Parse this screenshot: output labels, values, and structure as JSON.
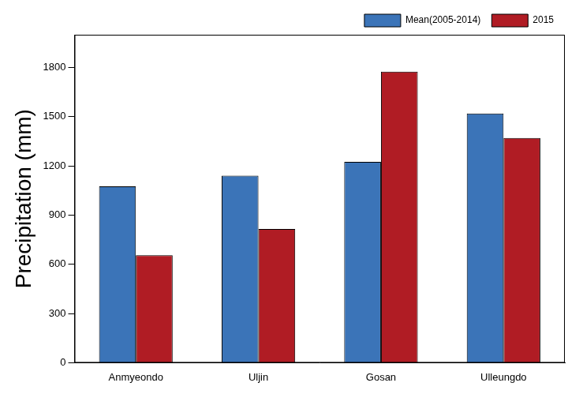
{
  "chart_data": {
    "type": "bar",
    "ylabel": "Precipitation (mm)",
    "categories": [
      "Anmyeondo",
      "Uljin",
      "Gosan",
      "Ulleungdo"
    ],
    "series": [
      {
        "name": "Mean(2005-2014)",
        "color": "#3b74b8",
        "values": [
          1075,
          1140,
          1225,
          1520
        ]
      },
      {
        "name": "2015",
        "color": "#b01c24",
        "values": [
          655,
          815,
          1775,
          1370
        ]
      }
    ],
    "ylim": [
      0,
      2000
    ],
    "yticks": [
      0,
      300,
      600,
      900,
      1200,
      1500,
      1800
    ],
    "grid": false,
    "legend": "top"
  }
}
